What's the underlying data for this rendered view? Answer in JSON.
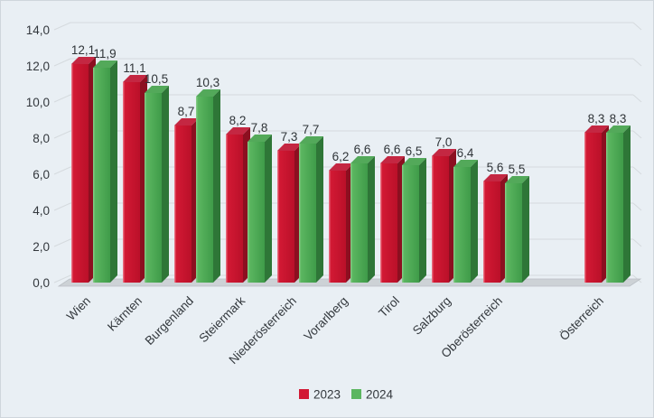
{
  "chart_data": {
    "type": "bar",
    "style": "3d-clustered-column",
    "title": "",
    "categories": [
      "Wien",
      "Kärnten",
      "Burgenland",
      "Steiermark",
      "Niederösterreich",
      "Vorarlberg",
      "Tirol",
      "Salzburg",
      "Oberösterreich",
      "Österreich"
    ],
    "series": [
      {
        "name": "2023",
        "values": [
          12.1,
          11.1,
          8.7,
          8.2,
          7.3,
          6.2,
          6.6,
          7.0,
          5.6,
          8.3
        ]
      },
      {
        "name": "2024",
        "values": [
          11.9,
          10.5,
          10.3,
          7.8,
          7.7,
          6.6,
          6.5,
          6.4,
          5.5,
          8.3
        ]
      }
    ],
    "value_labels": [
      [
        "12,1",
        "11,1",
        "8,7",
        "8,2",
        "7,3",
        "6,2",
        "6,6",
        "7,0",
        "5,6",
        "8,3"
      ],
      [
        "11,9",
        "10,5",
        "10,3",
        "7,8",
        "7,7",
        "6,6",
        "6,5",
        "6,4",
        "5,5",
        "8,3"
      ]
    ],
    "y_ticks": [
      "0,0",
      "2,0",
      "4,0",
      "6,0",
      "8,0",
      "10,0",
      "12,0",
      "14,0"
    ],
    "ylim": [
      0,
      14
    ],
    "y_step": 2,
    "grid": true,
    "legend_position": "bottom",
    "decimal_style": "comma",
    "separated_last_category": true,
    "x_label_rotation_deg": -45
  },
  "legend": {
    "items": [
      {
        "label": "2023",
        "color": "#d21934"
      },
      {
        "label": "2024",
        "color": "#5bb660"
      }
    ]
  },
  "colors": {
    "background": "#e9eff4",
    "grid": "#d5dade",
    "floor": "#cdd2d6",
    "floor_edge": "#babfc5",
    "text": "#33383d",
    "value_label": "#2f3438",
    "series": [
      {
        "front_light": "#ee8292",
        "front": "#d21934",
        "front_dark": "#ba1029",
        "side": "#8c0f20",
        "top": "#c42742"
      },
      {
        "front_light": "#8ccf8d",
        "front": "#5bb660",
        "front_dark": "#3f9b49",
        "side": "#2e7637",
        "top": "#53a95a"
      }
    ]
  }
}
